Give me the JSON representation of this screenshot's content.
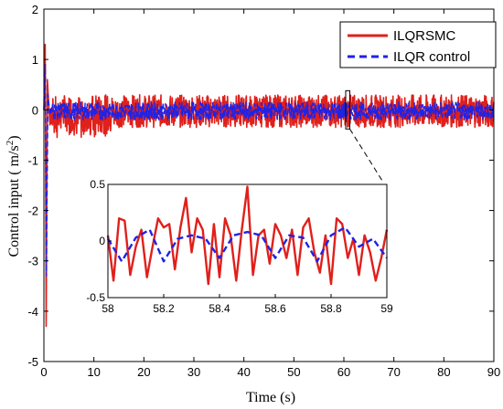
{
  "chart_data": [
    {
      "type": "line",
      "xlabel": "Time (s)",
      "ylabel_prefix": "Control input ( m/s",
      "ylabel_sup": "2",
      "ylabel_suffix": ")",
      "xlim": [
        0,
        90
      ],
      "ylim": [
        -5,
        2
      ],
      "x_ticks": [
        "0",
        "10",
        "20",
        "30",
        "40",
        "50",
        "60",
        "70",
        "80",
        "90"
      ],
      "y_ticks": [
        "-5",
        "-4",
        "-3",
        "-2",
        "-1",
        "0",
        "1",
        "2"
      ],
      "grid": false,
      "legend_placement": "top-right",
      "series": [
        {
          "name": "ILQRSMC",
          "color": "#e0201b",
          "style": "solid",
          "band": [
            -0.35,
            0.3
          ],
          "initial_transient": [
            [
              0,
              0
            ],
            [
              0.25,
              1.3
            ],
            [
              0.45,
              -4.3
            ],
            [
              0.7,
              0.6
            ],
            [
              1.2,
              -0.3
            ]
          ]
        },
        {
          "name": "ILQR control",
          "color": "#1f23e6",
          "style": "dashed",
          "band": [
            -0.2,
            0.15
          ],
          "initial_transient": [
            [
              0,
              0
            ],
            [
              0.3,
              0.9
            ],
            [
              0.5,
              -3.3
            ],
            [
              0.8,
              0.3
            ],
            [
              1.2,
              -0.1
            ]
          ]
        }
      ],
      "highlight_box_x": [
        60,
        61
      ]
    },
    {
      "type": "line",
      "role": "inset",
      "xlim": [
        58,
        59
      ],
      "ylim": [
        -0.5,
        0.5
      ],
      "x_ticks": [
        "58",
        "58.2",
        "58.4",
        "58.6",
        "58.8",
        "59"
      ],
      "y_ticks": [
        "-0.5",
        "0",
        "0.5"
      ],
      "series": [
        {
          "name": "ILQRSMC",
          "color": "#e0201b",
          "x": [
            58.0,
            58.02,
            58.04,
            58.06,
            58.08,
            58.1,
            58.12,
            58.14,
            58.16,
            58.18,
            58.2,
            58.22,
            58.24,
            58.26,
            58.28,
            58.3,
            58.32,
            58.34,
            58.36,
            58.38,
            58.4,
            58.42,
            58.44,
            58.46,
            58.48,
            58.5,
            58.52,
            58.54,
            58.56,
            58.58,
            58.6,
            58.62,
            58.64,
            58.66,
            58.68,
            58.7,
            58.72,
            58.74,
            58.76,
            58.78,
            58.8,
            58.82,
            58.84,
            58.86,
            58.88,
            58.9,
            58.92,
            58.94,
            58.96,
            58.98,
            59.0
          ],
          "y": [
            0.05,
            -0.35,
            0.2,
            0.18,
            -0.3,
            -0.05,
            0.1,
            -0.32,
            -0.05,
            0.2,
            0.12,
            0.15,
            -0.25,
            0.12,
            0.38,
            -0.1,
            0.2,
            0.1,
            -0.38,
            0.15,
            -0.32,
            0.2,
            0.05,
            -0.35,
            0.1,
            0.48,
            -0.3,
            0.05,
            0.1,
            -0.2,
            0.15,
            0.05,
            -0.15,
            0.1,
            -0.3,
            0.12,
            0.2,
            -0.1,
            -0.28,
            0.05,
            -0.38,
            0.2,
            0.15,
            -0.15,
            0.02,
            -0.3,
            0.05,
            -0.1,
            -0.35,
            -0.15,
            0.1
          ]
        },
        {
          "name": "ILQR control",
          "color": "#1f23e6",
          "x": [
            58.0,
            58.05,
            58.1,
            58.15,
            58.2,
            58.25,
            58.3,
            58.35,
            58.4,
            58.45,
            58.5,
            58.55,
            58.6,
            58.65,
            58.7,
            58.75,
            58.8,
            58.85,
            58.9,
            58.95,
            59.0
          ],
          "y": [
            0.02,
            -0.18,
            0.03,
            0.1,
            -0.18,
            0.02,
            0.05,
            0.02,
            -0.15,
            0.05,
            0.08,
            0.05,
            -0.15,
            0.05,
            0.03,
            -0.18,
            0.05,
            0.12,
            -0.05,
            0.02,
            -0.15
          ]
        }
      ]
    }
  ]
}
